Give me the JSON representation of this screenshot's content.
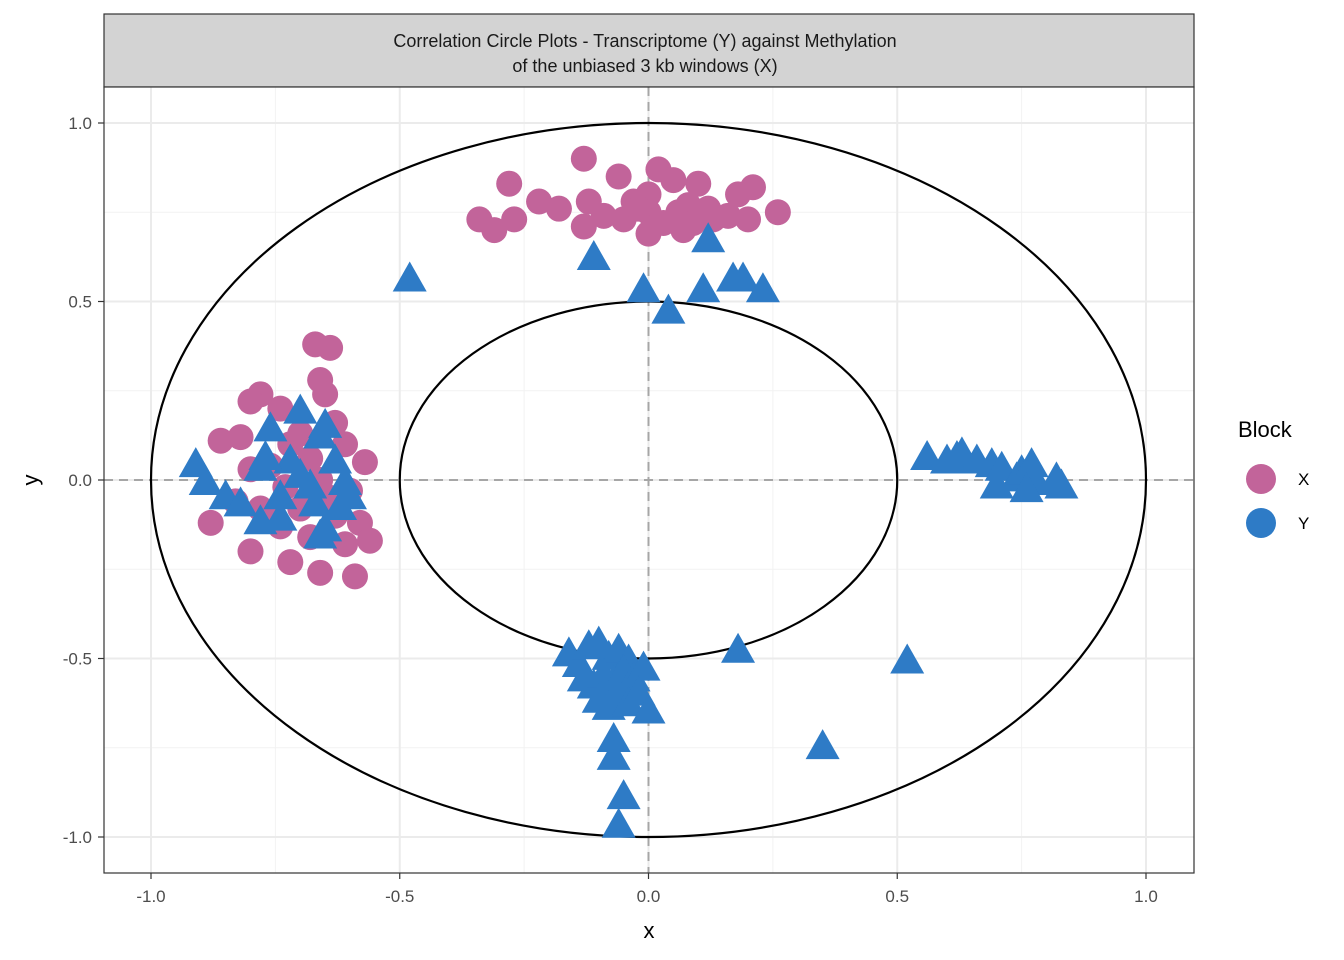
{
  "chart_data": {
    "type": "scatter",
    "title": "Correlation Circle Plots - Transcriptome (Y) against Methylation",
    "subtitle": "of the unbiased 3 kb windows (X)",
    "xlabel": "x",
    "ylabel": "y",
    "xlim": [
      -1.1,
      1.1
    ],
    "ylim": [
      -1.1,
      1.1
    ],
    "x_ticks": [
      "-1.0",
      "-0.5",
      "0.0",
      "0.5",
      "1.0"
    ],
    "y_ticks": [
      "-1.0",
      "-0.5",
      "0.0",
      "0.5",
      "1.0"
    ],
    "grid": true,
    "reference_lines": {
      "x": 0,
      "y": 0,
      "style": "dashed"
    },
    "circles": [
      {
        "radius": 1.0
      },
      {
        "radius": 0.5
      }
    ],
    "legend": {
      "title": "Block",
      "position": "right",
      "items": [
        {
          "label": "X",
          "color": "#c2649a"
        },
        {
          "label": "Y",
          "color": "#2e7bc6"
        }
      ]
    },
    "series": [
      {
        "name": "X",
        "color": "#c2649a",
        "marker": "circle",
        "points": [
          [
            -0.13,
            0.9
          ],
          [
            -0.06,
            0.85
          ],
          [
            0.02,
            0.87
          ],
          [
            0.05,
            0.84
          ],
          [
            -0.28,
            0.83
          ],
          [
            0.1,
            0.83
          ],
          [
            0.21,
            0.82
          ],
          [
            0.18,
            0.8
          ],
          [
            -0.22,
            0.78
          ],
          [
            -0.18,
            0.76
          ],
          [
            -0.12,
            0.78
          ],
          [
            -0.03,
            0.78
          ],
          [
            0.0,
            0.8
          ],
          [
            0.08,
            0.77
          ],
          [
            0.12,
            0.76
          ],
          [
            -0.34,
            0.73
          ],
          [
            -0.27,
            0.73
          ],
          [
            -0.31,
            0.7
          ],
          [
            -0.13,
            0.71
          ],
          [
            -0.09,
            0.74
          ],
          [
            -0.05,
            0.73
          ],
          [
            0.0,
            0.75
          ],
          [
            0.03,
            0.72
          ],
          [
            0.06,
            0.75
          ],
          [
            0.09,
            0.72
          ],
          [
            0.13,
            0.73
          ],
          [
            0.16,
            0.74
          ],
          [
            0.2,
            0.73
          ],
          [
            0.26,
            0.75
          ],
          [
            0.0,
            0.69
          ],
          [
            0.07,
            0.7
          ],
          [
            -0.02,
            0.76
          ],
          [
            -0.67,
            0.38
          ],
          [
            -0.64,
            0.37
          ],
          [
            -0.66,
            0.28
          ],
          [
            -0.65,
            0.24
          ],
          [
            -0.78,
            0.24
          ],
          [
            -0.8,
            0.22
          ],
          [
            -0.74,
            0.2
          ],
          [
            -0.63,
            0.16
          ],
          [
            -0.61,
            0.1
          ],
          [
            -0.7,
            0.13
          ],
          [
            -0.72,
            0.1
          ],
          [
            -0.82,
            0.12
          ],
          [
            -0.86,
            0.11
          ],
          [
            -0.68,
            0.06
          ],
          [
            -0.57,
            0.05
          ],
          [
            -0.76,
            0.04
          ],
          [
            -0.8,
            0.03
          ],
          [
            -0.66,
            0.0
          ],
          [
            -0.73,
            -0.02
          ],
          [
            -0.6,
            -0.03
          ],
          [
            -0.83,
            -0.06
          ],
          [
            -0.78,
            -0.08
          ],
          [
            -0.7,
            -0.08
          ],
          [
            -0.63,
            -0.1
          ],
          [
            -0.88,
            -0.12
          ],
          [
            -0.74,
            -0.13
          ],
          [
            -0.58,
            -0.12
          ],
          [
            -0.68,
            -0.16
          ],
          [
            -0.61,
            -0.18
          ],
          [
            -0.56,
            -0.17
          ],
          [
            -0.8,
            -0.2
          ],
          [
            -0.72,
            -0.23
          ],
          [
            -0.66,
            -0.26
          ],
          [
            -0.59,
            -0.27
          ],
          [
            -0.76,
            -0.1
          ],
          [
            -0.64,
            -0.05
          ]
        ]
      },
      {
        "name": "Y",
        "color": "#2e7bc6",
        "marker": "triangle",
        "points": [
          [
            -0.48,
            0.56
          ],
          [
            -0.11,
            0.62
          ],
          [
            0.12,
            0.67
          ],
          [
            -0.01,
            0.53
          ],
          [
            0.04,
            0.47
          ],
          [
            0.11,
            0.53
          ],
          [
            0.17,
            0.56
          ],
          [
            0.19,
            0.56
          ],
          [
            0.23,
            0.53
          ],
          [
            -0.91,
            0.04
          ],
          [
            -0.89,
            -0.01
          ],
          [
            -0.85,
            -0.05
          ],
          [
            -0.82,
            -0.07
          ],
          [
            -0.78,
            0.03
          ],
          [
            -0.76,
            0.14
          ],
          [
            -0.74,
            -0.05
          ],
          [
            -0.72,
            0.05
          ],
          [
            -0.7,
            0.19
          ],
          [
            -0.68,
            -0.02
          ],
          [
            -0.66,
            0.12
          ],
          [
            -0.65,
            0.15
          ],
          [
            -0.63,
            0.05
          ],
          [
            -0.61,
            -0.01
          ],
          [
            -0.6,
            -0.05
          ],
          [
            -0.78,
            -0.12
          ],
          [
            -0.74,
            -0.11
          ],
          [
            -0.67,
            -0.07
          ],
          [
            -0.66,
            -0.16
          ],
          [
            -0.65,
            -0.14
          ],
          [
            -0.62,
            -0.08
          ],
          [
            -0.77,
            0.06
          ],
          [
            -0.7,
            0.01
          ],
          [
            0.56,
            0.06
          ],
          [
            0.6,
            0.05
          ],
          [
            0.62,
            0.06
          ],
          [
            0.63,
            0.07
          ],
          [
            0.66,
            0.05
          ],
          [
            0.69,
            0.04
          ],
          [
            0.71,
            0.03
          ],
          [
            0.74,
            0.0
          ],
          [
            0.75,
            0.02
          ],
          [
            0.77,
            0.04
          ],
          [
            0.78,
            -0.01
          ],
          [
            0.82,
            0.0
          ],
          [
            0.83,
            -0.02
          ],
          [
            0.7,
            -0.02
          ],
          [
            0.76,
            -0.03
          ],
          [
            -0.16,
            -0.49
          ],
          [
            -0.14,
            -0.52
          ],
          [
            -0.12,
            -0.47
          ],
          [
            -0.1,
            -0.46
          ],
          [
            -0.08,
            -0.5
          ],
          [
            -0.06,
            -0.48
          ],
          [
            -0.04,
            -0.51
          ],
          [
            -0.13,
            -0.56
          ],
          [
            -0.11,
            -0.58
          ],
          [
            -0.09,
            -0.55
          ],
          [
            -0.07,
            -0.57
          ],
          [
            -0.05,
            -0.54
          ],
          [
            -0.03,
            -0.56
          ],
          [
            -0.01,
            -0.53
          ],
          [
            -0.1,
            -0.62
          ],
          [
            -0.08,
            -0.64
          ],
          [
            -0.06,
            -0.61
          ],
          [
            -0.04,
            -0.63
          ],
          [
            -0.02,
            -0.6
          ],
          [
            0.0,
            -0.65
          ],
          [
            -0.07,
            -0.73
          ],
          [
            -0.07,
            -0.78
          ],
          [
            -0.05,
            -0.89
          ],
          [
            -0.06,
            -0.97
          ],
          [
            0.18,
            -0.48
          ],
          [
            0.52,
            -0.51
          ],
          [
            0.35,
            -0.75
          ]
        ]
      }
    ]
  }
}
